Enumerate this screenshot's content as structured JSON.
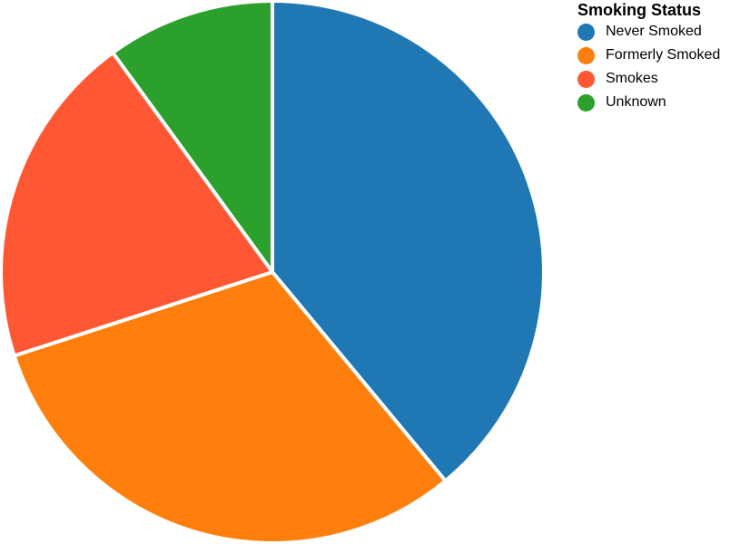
{
  "chart_data": {
    "type": "pie",
    "legend_title": "Smoking Status",
    "legend_placement": "top-right",
    "slices": [
      {
        "label": "Never Smoked",
        "value": 39,
        "color": "#1f77b4"
      },
      {
        "label": "Formerly Smoked",
        "value": 31,
        "color": "#ff7f0e"
      },
      {
        "label": "Smokes",
        "value": 20,
        "color": "#ff5733"
      },
      {
        "label": "Unknown",
        "value": 10,
        "color": "#2ca02c"
      }
    ]
  }
}
